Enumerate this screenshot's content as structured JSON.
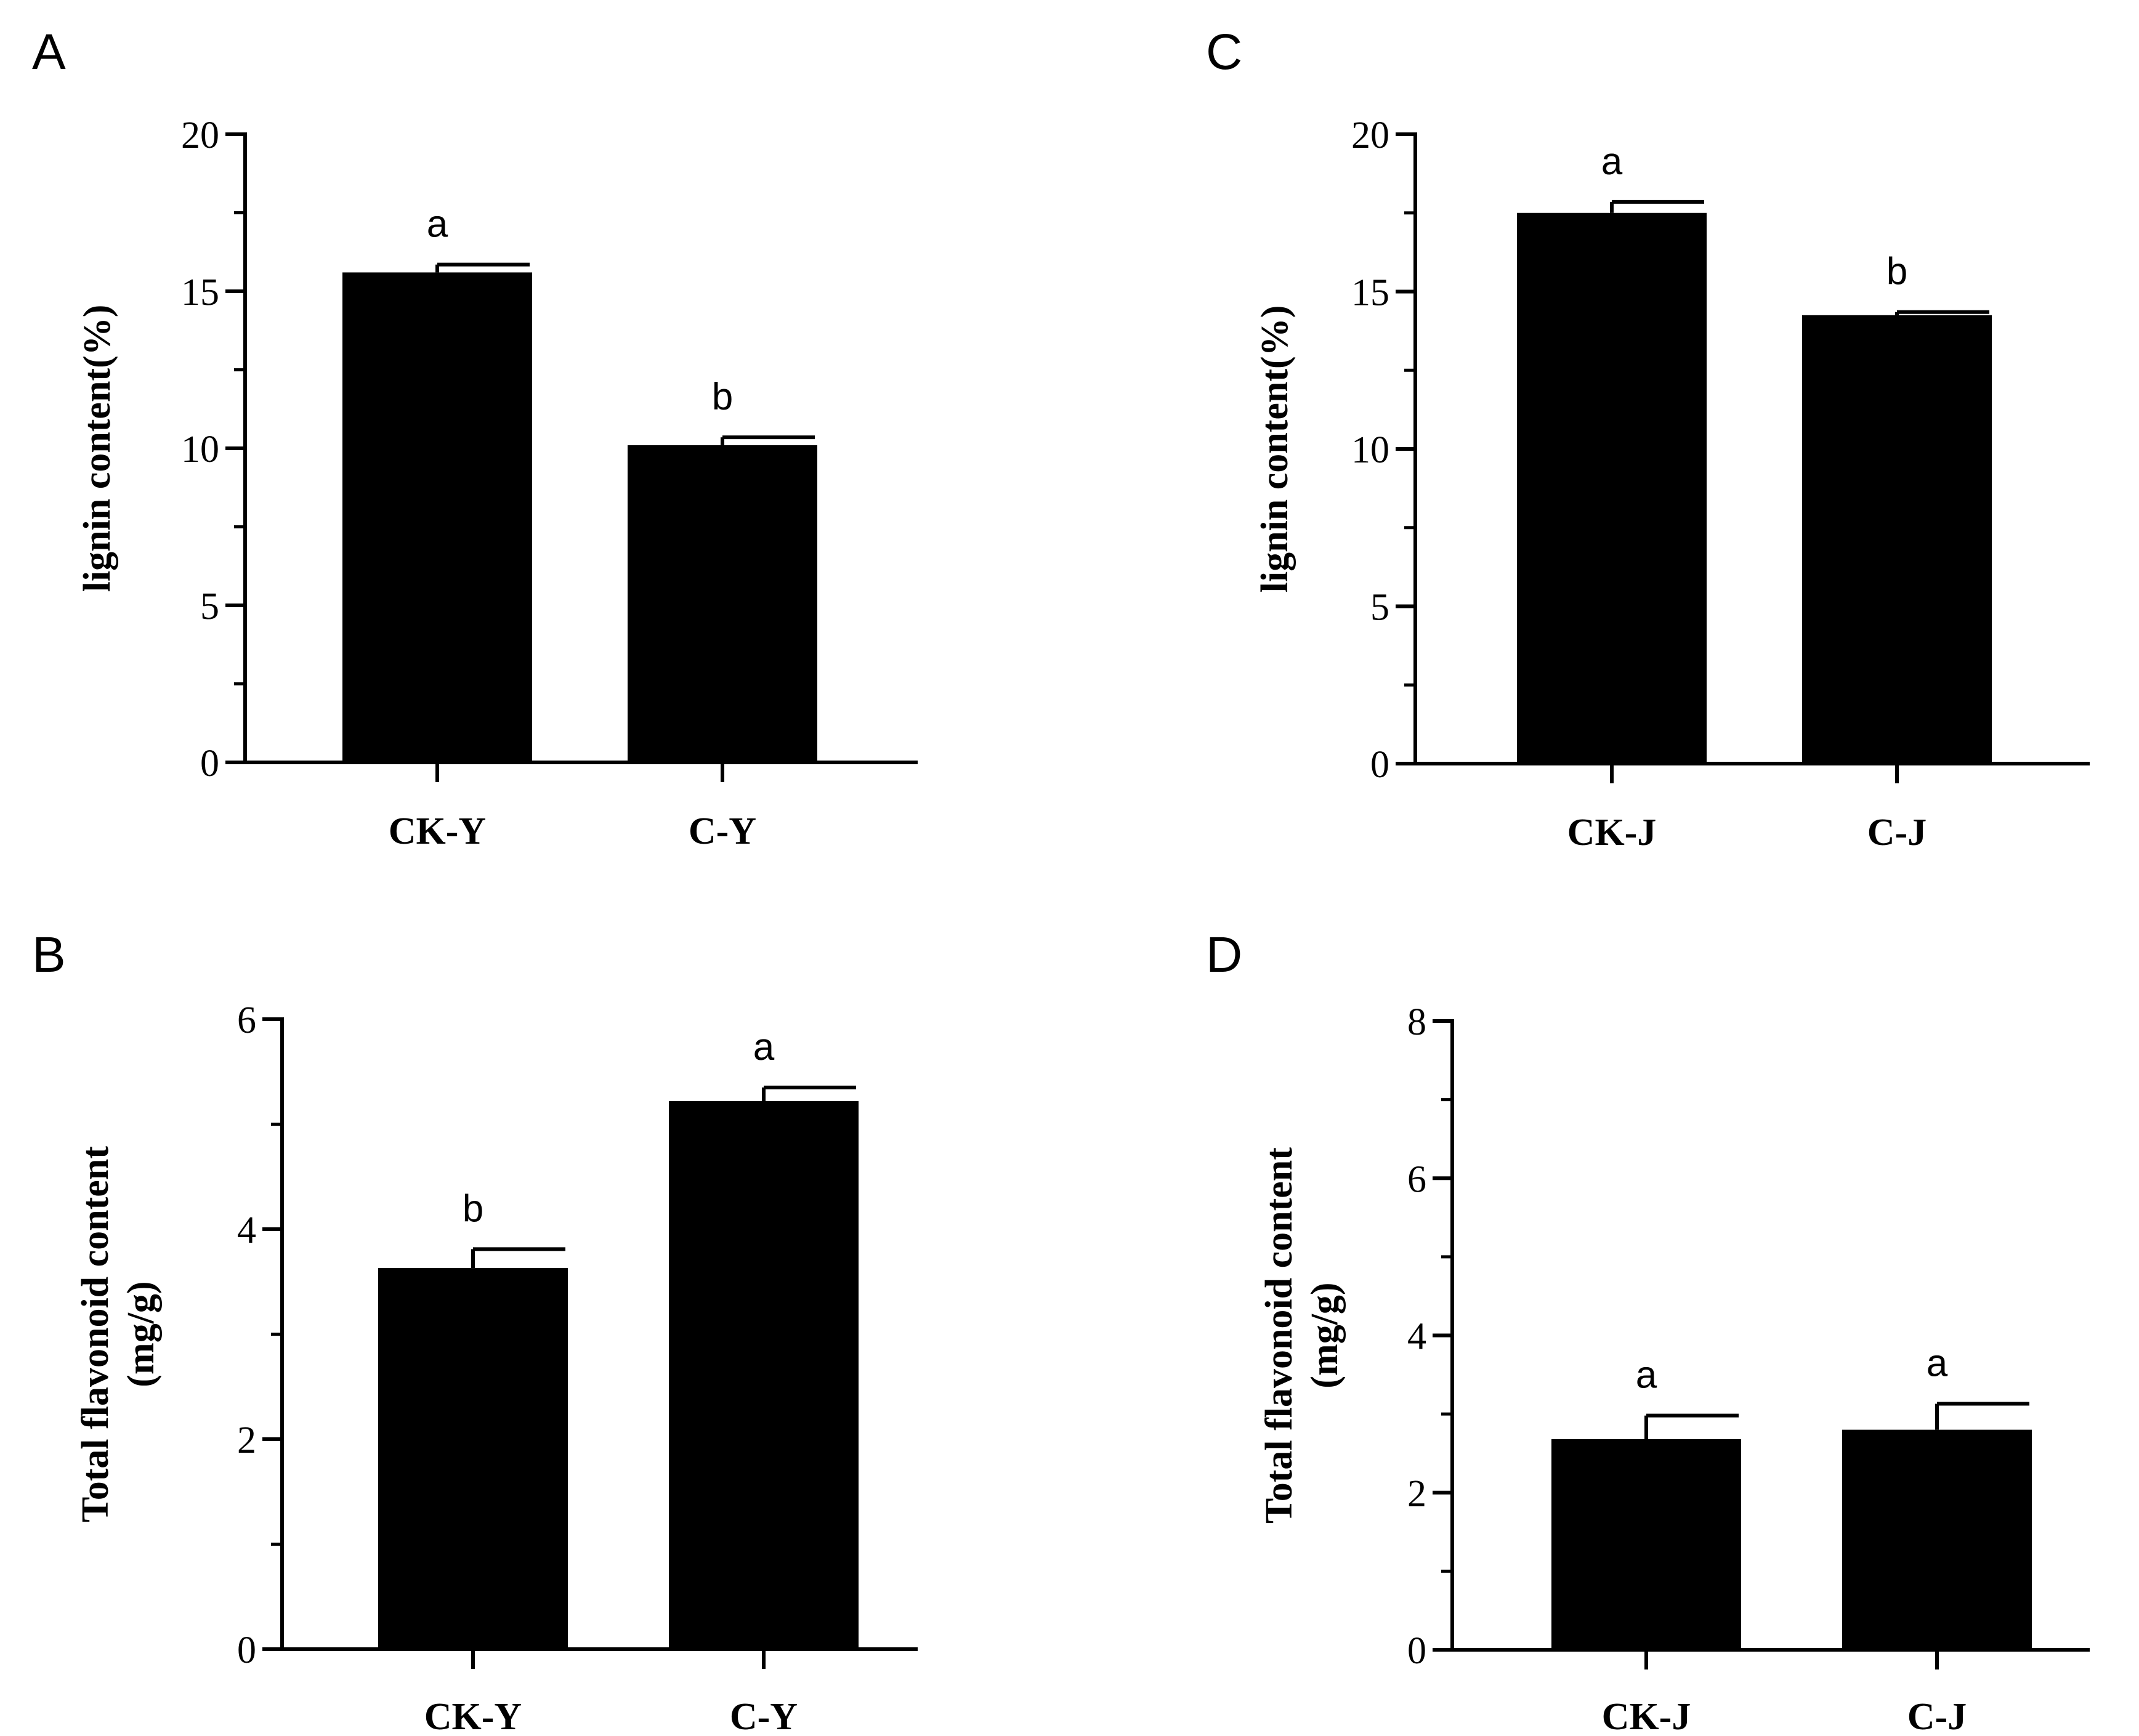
{
  "chart_data": [
    {
      "panel": "A",
      "type": "bar",
      "categories": [
        "CK-Y",
        "C-Y"
      ],
      "values": [
        15.6,
        10.1
      ],
      "errors": [
        0.25,
        0.25
      ],
      "significance": [
        "a",
        "b"
      ],
      "ylabel_lines": [
        "lignin content(%)"
      ],
      "xlabel": "",
      "ylim": [
        0,
        20
      ],
      "yticks": [
        0,
        5,
        10,
        15,
        20
      ]
    },
    {
      "panel": "B",
      "type": "bar",
      "categories": [
        "CK-Y",
        "C-Y"
      ],
      "values": [
        3.63,
        5.22
      ],
      "errors": [
        0.18,
        0.13
      ],
      "significance": [
        "b",
        "a"
      ],
      "ylabel_lines": [
        "Total flavonoid content",
        "(mg/g)"
      ],
      "xlabel": "",
      "ylim": [
        0,
        6
      ],
      "yticks": [
        0,
        2,
        4,
        6
      ]
    },
    {
      "panel": "C",
      "type": "bar",
      "categories": [
        "CK-J",
        "C-J"
      ],
      "values": [
        17.5,
        14.25
      ],
      "errors": [
        0.35,
        0.1
      ],
      "significance": [
        "a",
        "b"
      ],
      "ylabel_lines": [
        "lignin content(%)"
      ],
      "xlabel": "",
      "ylim": [
        0,
        20
      ],
      "yticks": [
        0,
        5,
        10,
        15,
        20
      ]
    },
    {
      "panel": "D",
      "type": "bar",
      "categories": [
        "CK-J",
        "C-J"
      ],
      "values": [
        2.68,
        2.8
      ],
      "errors": [
        0.3,
        0.33
      ],
      "significance": [
        "a",
        "a"
      ],
      "ylabel_lines": [
        "Total flavonoid content",
        "(mg/g)"
      ],
      "xlabel": "",
      "ylim": [
        0,
        8
      ],
      "yticks": [
        0,
        2,
        4,
        6,
        8
      ]
    }
  ],
  "colors": {
    "bar": "#000000",
    "axis": "#000000",
    "background": "#ffffff"
  }
}
